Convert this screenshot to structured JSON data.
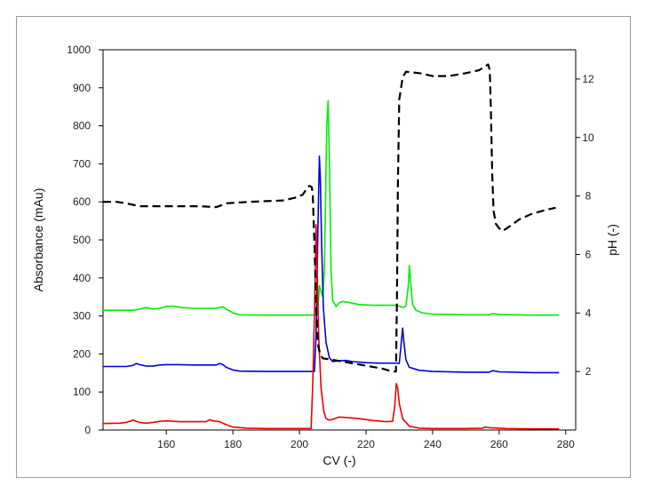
{
  "chart_data": {
    "type": "line",
    "xlabel": "CV (-)",
    "ylabel_left": "Absorbance (mAu)",
    "ylabel_right": "pH (-)",
    "xlim": [
      141,
      283
    ],
    "ylim_left": [
      0,
      1000
    ],
    "ylim_right": [
      0,
      13.0
    ],
    "x_ticks": [
      160,
      180,
      200,
      220,
      240,
      260,
      280
    ],
    "y_ticks_left": [
      0,
      100,
      200,
      300,
      400,
      500,
      600,
      700,
      800,
      900,
      1000
    ],
    "y_ticks_right": [
      2,
      4,
      6,
      8,
      10,
      12
    ],
    "grid": false,
    "legend": "none",
    "series": [
      {
        "color": "#00ee00",
        "axis": "left",
        "style": "solid",
        "points": [
          [
            141,
            315
          ],
          [
            150,
            315
          ],
          [
            152,
            318
          ],
          [
            154,
            322
          ],
          [
            156,
            318
          ],
          [
            158,
            320
          ],
          [
            160,
            325
          ],
          [
            162,
            326
          ],
          [
            164,
            323
          ],
          [
            168,
            320
          ],
          [
            172,
            320
          ],
          [
            175,
            320
          ],
          [
            176,
            322
          ],
          [
            177,
            324
          ],
          [
            178,
            318
          ],
          [
            180,
            308
          ],
          [
            182,
            303
          ],
          [
            190,
            302
          ],
          [
            200,
            302
          ],
          [
            204,
            302
          ],
          [
            205.5,
            306
          ],
          [
            206,
            380
          ],
          [
            207,
            350
          ],
          [
            207.5,
            420
          ],
          [
            208.2,
            800
          ],
          [
            208.6,
            866
          ],
          [
            209,
            700
          ],
          [
            209.5,
            420
          ],
          [
            210,
            340
          ],
          [
            211,
            325
          ],
          [
            212,
            335
          ],
          [
            213,
            338
          ],
          [
            215,
            335
          ],
          [
            218,
            330
          ],
          [
            222,
            328
          ],
          [
            226,
            328
          ],
          [
            229,
            328
          ],
          [
            230,
            326
          ],
          [
            231,
            322
          ],
          [
            232,
            326
          ],
          [
            232.7,
            380
          ],
          [
            233,
            433
          ],
          [
            233.4,
            390
          ],
          [
            234,
            330
          ],
          [
            235,
            315
          ],
          [
            237,
            308
          ],
          [
            240,
            305
          ],
          [
            250,
            303
          ],
          [
            257,
            303
          ],
          [
            258,
            306
          ],
          [
            260,
            304
          ],
          [
            270,
            302
          ],
          [
            278,
            302
          ]
        ]
      },
      {
        "color": "#0000dd",
        "axis": "left",
        "style": "solid",
        "points": [
          [
            141,
            167
          ],
          [
            148,
            167
          ],
          [
            150,
            170
          ],
          [
            151,
            175
          ],
          [
            152,
            172
          ],
          [
            154,
            168
          ],
          [
            156,
            168
          ],
          [
            158,
            171
          ],
          [
            160,
            172
          ],
          [
            164,
            172
          ],
          [
            168,
            171
          ],
          [
            172,
            171
          ],
          [
            175,
            171
          ],
          [
            176,
            175
          ],
          [
            177,
            172
          ],
          [
            178,
            165
          ],
          [
            180,
            158
          ],
          [
            182,
            155
          ],
          [
            190,
            154
          ],
          [
            200,
            154
          ],
          [
            204.5,
            154
          ],
          [
            205,
            250
          ],
          [
            205.6,
            550
          ],
          [
            206,
            720
          ],
          [
            206.3,
            660
          ],
          [
            206.7,
            480
          ],
          [
            207.2,
            320
          ],
          [
            208,
            230
          ],
          [
            209,
            190
          ],
          [
            210,
            180
          ],
          [
            212,
            182
          ],
          [
            214,
            183
          ],
          [
            216,
            180
          ],
          [
            220,
            177
          ],
          [
            224,
            176
          ],
          [
            229,
            176
          ],
          [
            230,
            175
          ],
          [
            230.5,
            220
          ],
          [
            231,
            268
          ],
          [
            231.4,
            230
          ],
          [
            232,
            185
          ],
          [
            233,
            165
          ],
          [
            236,
            157
          ],
          [
            240,
            154
          ],
          [
            250,
            152
          ],
          [
            257,
            152
          ],
          [
            258,
            156
          ],
          [
            260,
            153
          ],
          [
            270,
            151
          ],
          [
            278,
            151
          ]
        ]
      },
      {
        "color": "#ee0000",
        "axis": "left",
        "style": "solid",
        "points": [
          [
            141,
            17
          ],
          [
            146,
            18
          ],
          [
            148,
            20
          ],
          [
            149,
            23
          ],
          [
            150,
            26
          ],
          [
            151,
            23
          ],
          [
            152,
            20
          ],
          [
            154,
            18
          ],
          [
            156,
            20
          ],
          [
            158,
            23
          ],
          [
            160,
            24
          ],
          [
            164,
            22
          ],
          [
            168,
            22
          ],
          [
            172,
            22
          ],
          [
            173,
            27
          ],
          [
            174,
            24
          ],
          [
            176,
            22
          ],
          [
            178,
            14
          ],
          [
            180,
            8
          ],
          [
            184,
            5
          ],
          [
            190,
            4
          ],
          [
            200,
            4
          ],
          [
            203.5,
            4
          ],
          [
            204,
            120
          ],
          [
            204.5,
            300
          ],
          [
            205,
            540
          ],
          [
            205.3,
            430
          ],
          [
            205.8,
            240
          ],
          [
            206.5,
            110
          ],
          [
            207.3,
            50
          ],
          [
            208,
            30
          ],
          [
            209,
            26
          ],
          [
            210,
            28
          ],
          [
            212,
            34
          ],
          [
            214,
            33
          ],
          [
            218,
            30
          ],
          [
            222,
            25
          ],
          [
            226,
            22
          ],
          [
            228,
            23
          ],
          [
            228.6,
            60
          ],
          [
            229.1,
            122
          ],
          [
            229.5,
            110
          ],
          [
            230,
            70
          ],
          [
            231,
            30
          ],
          [
            233,
            10
          ],
          [
            236,
            5
          ],
          [
            240,
            4
          ],
          [
            250,
            4
          ],
          [
            255,
            5
          ],
          [
            256,
            8
          ],
          [
            257,
            6
          ],
          [
            262,
            4
          ],
          [
            270,
            3
          ],
          [
            278,
            3
          ]
        ]
      },
      {
        "color": "#000000",
        "axis": "right",
        "style": "dashed",
        "points": [
          [
            141,
            7.8
          ],
          [
            145,
            7.8
          ],
          [
            148,
            7.75
          ],
          [
            150,
            7.7
          ],
          [
            152,
            7.65
          ],
          [
            160,
            7.65
          ],
          [
            170,
            7.65
          ],
          [
            175,
            7.62
          ],
          [
            177,
            7.7
          ],
          [
            178,
            7.75
          ],
          [
            185,
            7.8
          ],
          [
            195,
            7.85
          ],
          [
            199,
            7.95
          ],
          [
            201,
            8.05
          ],
          [
            202.5,
            8.3
          ],
          [
            203,
            8.35
          ],
          [
            203.7,
            8.3
          ],
          [
            204,
            8.1
          ],
          [
            204.6,
            6.0
          ],
          [
            205.1,
            4.0
          ],
          [
            205.6,
            2.9
          ],
          [
            206.2,
            2.6
          ],
          [
            207,
            2.45
          ],
          [
            210,
            2.4
          ],
          [
            215,
            2.3
          ],
          [
            220,
            2.2
          ],
          [
            225,
            2.1
          ],
          [
            228,
            2.0
          ],
          [
            229,
            2.0
          ],
          [
            229.3,
            4.5
          ],
          [
            229.6,
            8.5
          ],
          [
            230,
            11.3
          ],
          [
            231,
            12.05
          ],
          [
            232,
            12.25
          ],
          [
            236,
            12.2
          ],
          [
            240,
            12.1
          ],
          [
            245,
            12.1
          ],
          [
            250,
            12.2
          ],
          [
            254,
            12.3
          ],
          [
            256,
            12.45
          ],
          [
            256.7,
            12.5
          ],
          [
            257.2,
            12.3
          ],
          [
            257.5,
            11.0
          ],
          [
            257.9,
            8.8
          ],
          [
            258.3,
            7.5
          ],
          [
            259,
            7.05
          ],
          [
            260,
            6.9
          ],
          [
            261,
            6.8
          ],
          [
            263,
            6.95
          ],
          [
            266,
            7.2
          ],
          [
            270,
            7.4
          ],
          [
            275,
            7.55
          ],
          [
            277,
            7.6
          ]
        ]
      }
    ]
  }
}
